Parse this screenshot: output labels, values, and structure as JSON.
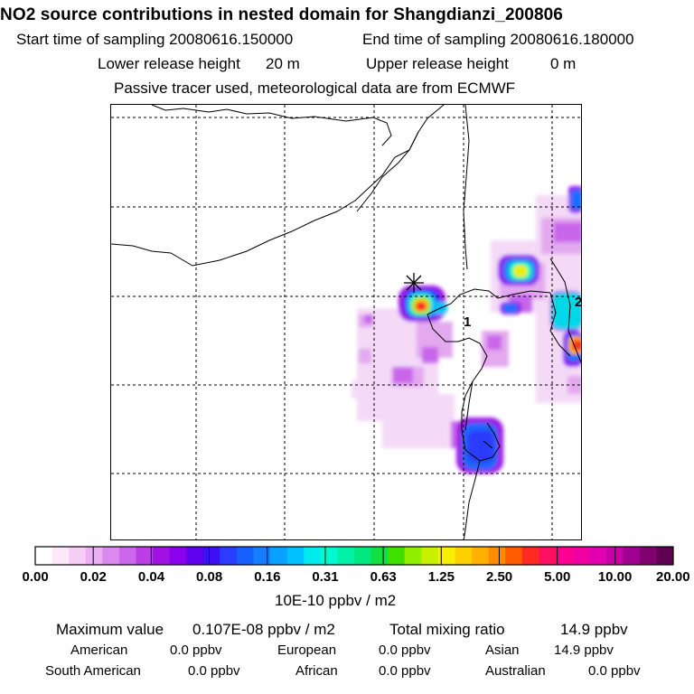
{
  "header": {
    "title": "NO2 source contributions in nested domain for Shangdianzi_200806",
    "start_label": "Start time of sampling 20080616.150000",
    "end_label": "End time of sampling 20080616.180000",
    "lower_label": "Lower release height",
    "lower_value": "20 m",
    "upper_label": "Upper release height",
    "upper_value": "0 m",
    "note": "Passive tracer used, meteorological data are from ECMWF"
  },
  "map": {
    "station_labels": [
      "1",
      "2"
    ],
    "receptor_marker": "x-cross-icon"
  },
  "colorbar": {
    "tick_labels": [
      "0.00",
      "0.02",
      "0.04",
      "0.08",
      "0.16",
      "0.31",
      "0.63",
      "1.25",
      "2.50",
      "5.00",
      "10.00",
      "20.00"
    ],
    "unit": "10E-10 ppbv / m2",
    "colors": [
      "#ffffff",
      "#fbe8fb",
      "#f5cdf7",
      "#eab0f2",
      "#dd88ee",
      "#cc66ea",
      "#bb3ee6",
      "#9f12e2",
      "#8b00ee",
      "#6000f0",
      "#3c10f4",
      "#2a3cff",
      "#1560ff",
      "#1480ff",
      "#0aa0ff",
      "#00c0ff",
      "#00eaf0",
      "#00f8d0",
      "#00f0a8",
      "#00e880",
      "#10e040",
      "#40e000",
      "#90f000",
      "#c8f000",
      "#f8f000",
      "#ffd000",
      "#ffb000",
      "#ff8c00",
      "#ff5a00",
      "#ff2a20",
      "#ff1060",
      "#ff0090",
      "#f000a0",
      "#e000b0",
      "#c800a8",
      "#a00090",
      "#800070",
      "#600050"
    ]
  },
  "stats": {
    "max_label": "Maximum value",
    "max_value": "0.107E-08 ppbv / m2",
    "total_label": "Total mixing ratio",
    "total_value": "14.9 ppbv",
    "regions": [
      {
        "name": "American",
        "value": "0.0 ppbv"
      },
      {
        "name": "European",
        "value": "0.0 ppbv"
      },
      {
        "name": "Asian",
        "value": "14.9 ppbv"
      },
      {
        "name": "South American",
        "value": "0.0 ppbv"
      },
      {
        "name": "African",
        "value": "0.0 ppbv"
      },
      {
        "name": "Australian",
        "value": "0.0 ppbv"
      }
    ]
  }
}
